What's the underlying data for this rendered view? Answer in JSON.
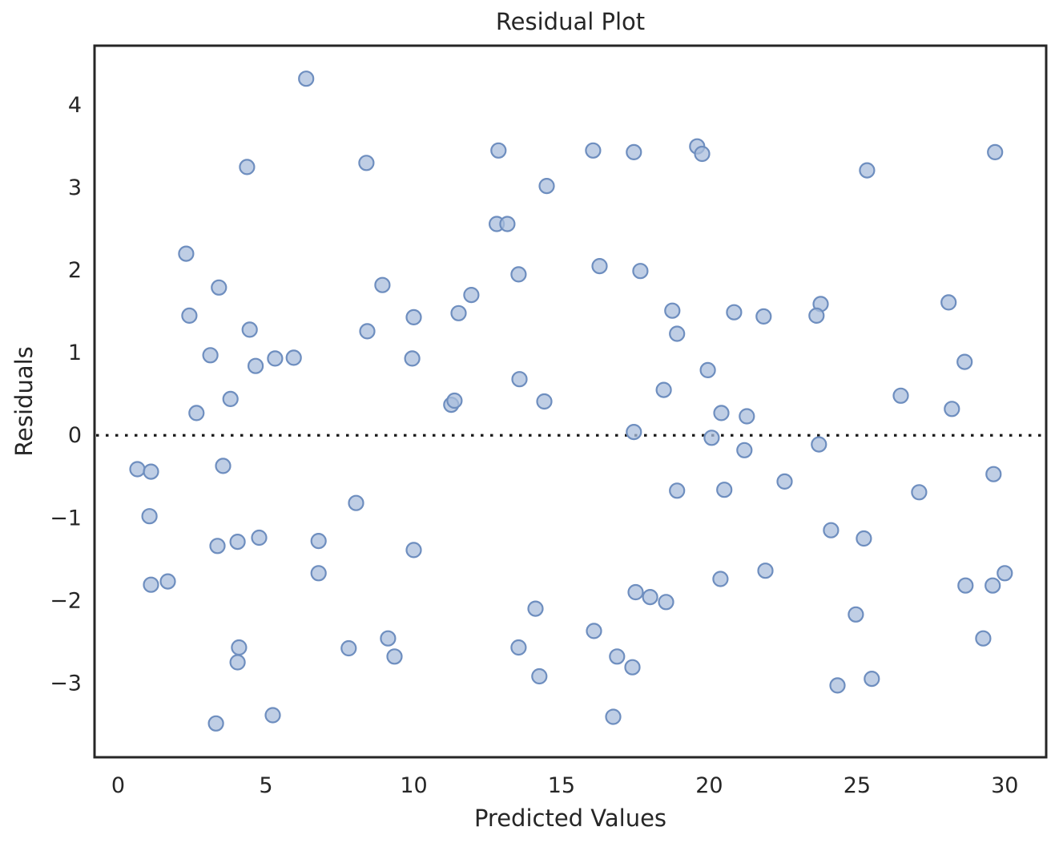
{
  "figure": {
    "background": "#ffffff"
  },
  "chart_data": {
    "type": "scatter",
    "title": "Residual Plot",
    "xlabel": "Predicted Values",
    "ylabel": "Residuals",
    "xlim": [
      -0.8,
      31.4
    ],
    "ylim": [
      -3.9,
      4.72
    ],
    "xticks": [
      0,
      5,
      10,
      15,
      20,
      25,
      30
    ],
    "yticks": [
      -3,
      -2,
      -1,
      0,
      1,
      2,
      3,
      4
    ],
    "grid": false,
    "legend": null,
    "zero_line": {
      "y": 0,
      "style": "dotted",
      "color": "#1a1a1a"
    },
    "spine_color": "#262626",
    "text_color": "#262626",
    "marker": {
      "shape": "circle",
      "fill": "#a9bedc",
      "stroke": "#6e8ebf",
      "opacity": 0.75,
      "radius_px": 9
    },
    "points": [
      [
        6.36,
        4.32
      ],
      [
        4.36,
        3.25
      ],
      [
        2.3,
        2.2
      ],
      [
        3.41,
        1.79
      ],
      [
        2.41,
        1.45
      ],
      [
        4.45,
        1.28
      ],
      [
        3.12,
        0.97
      ],
      [
        4.65,
        0.84
      ],
      [
        5.31,
        0.93
      ],
      [
        5.94,
        0.94
      ],
      [
        3.8,
        0.44
      ],
      [
        2.65,
        0.27
      ],
      [
        8.4,
        3.3
      ],
      [
        12.87,
        3.45
      ],
      [
        14.5,
        3.02
      ],
      [
        12.81,
        2.56
      ],
      [
        13.17,
        2.56
      ],
      [
        13.55,
        1.95
      ],
      [
        8.94,
        1.82
      ],
      [
        11.95,
        1.7
      ],
      [
        11.52,
        1.48
      ],
      [
        10.0,
        1.43
      ],
      [
        8.43,
        1.26
      ],
      [
        9.95,
        0.93
      ],
      [
        13.58,
        0.68
      ],
      [
        11.27,
        0.37
      ],
      [
        11.38,
        0.42
      ],
      [
        14.42,
        0.41
      ],
      [
        16.07,
        3.45
      ],
      [
        17.45,
        3.43
      ],
      [
        19.59,
        3.5
      ],
      [
        19.76,
        3.41
      ],
      [
        16.29,
        2.05
      ],
      [
        17.67,
        1.99
      ],
      [
        18.75,
        1.51
      ],
      [
        20.84,
        1.49
      ],
      [
        21.84,
        1.44
      ],
      [
        18.91,
        1.23
      ],
      [
        19.95,
        0.79
      ],
      [
        18.46,
        0.55
      ],
      [
        20.41,
        0.27
      ],
      [
        21.27,
        0.23
      ],
      [
        17.45,
        0.04
      ],
      [
        20.08,
        -0.03
      ],
      [
        29.67,
        3.43
      ],
      [
        25.34,
        3.21
      ],
      [
        23.77,
        1.59
      ],
      [
        23.63,
        1.45
      ],
      [
        28.1,
        1.61
      ],
      [
        28.64,
        0.89
      ],
      [
        26.48,
        0.48
      ],
      [
        28.21,
        0.32
      ],
      [
        0.65,
        -0.41
      ],
      [
        1.11,
        -0.44
      ],
      [
        3.55,
        -0.37
      ],
      [
        1.06,
        -0.98
      ],
      [
        3.36,
        -1.34
      ],
      [
        4.04,
        -1.29
      ],
      [
        4.77,
        -1.24
      ],
      [
        6.78,
        -1.28
      ],
      [
        6.78,
        -1.67
      ],
      [
        1.11,
        -1.81
      ],
      [
        1.68,
        -1.77
      ],
      [
        4.09,
        -2.57
      ],
      [
        4.04,
        -2.75
      ],
      [
        3.31,
        -3.49
      ],
      [
        5.23,
        -3.39
      ],
      [
        8.05,
        -0.82
      ],
      [
        10.0,
        -1.39
      ],
      [
        14.12,
        -2.1
      ],
      [
        9.13,
        -2.46
      ],
      [
        7.8,
        -2.58
      ],
      [
        9.35,
        -2.68
      ],
      [
        13.55,
        -2.57
      ],
      [
        14.25,
        -2.92
      ],
      [
        21.19,
        -0.18
      ],
      [
        22.55,
        -0.56
      ],
      [
        18.91,
        -0.67
      ],
      [
        20.51,
        -0.66
      ],
      [
        21.9,
        -1.64
      ],
      [
        20.38,
        -1.74
      ],
      [
        17.51,
        -1.9
      ],
      [
        18.0,
        -1.96
      ],
      [
        18.54,
        -2.02
      ],
      [
        16.1,
        -2.37
      ],
      [
        16.88,
        -2.68
      ],
      [
        17.4,
        -2.81
      ],
      [
        16.75,
        -3.41
      ],
      [
        23.71,
        -0.11
      ],
      [
        29.62,
        -0.47
      ],
      [
        27.1,
        -0.69
      ],
      [
        24.12,
        -1.15
      ],
      [
        25.23,
        -1.25
      ],
      [
        28.67,
        -1.82
      ],
      [
        29.59,
        -1.82
      ],
      [
        30.0,
        -1.67
      ],
      [
        24.96,
        -2.17
      ],
      [
        29.27,
        -2.46
      ],
      [
        24.34,
        -3.03
      ],
      [
        25.5,
        -2.95
      ]
    ]
  }
}
